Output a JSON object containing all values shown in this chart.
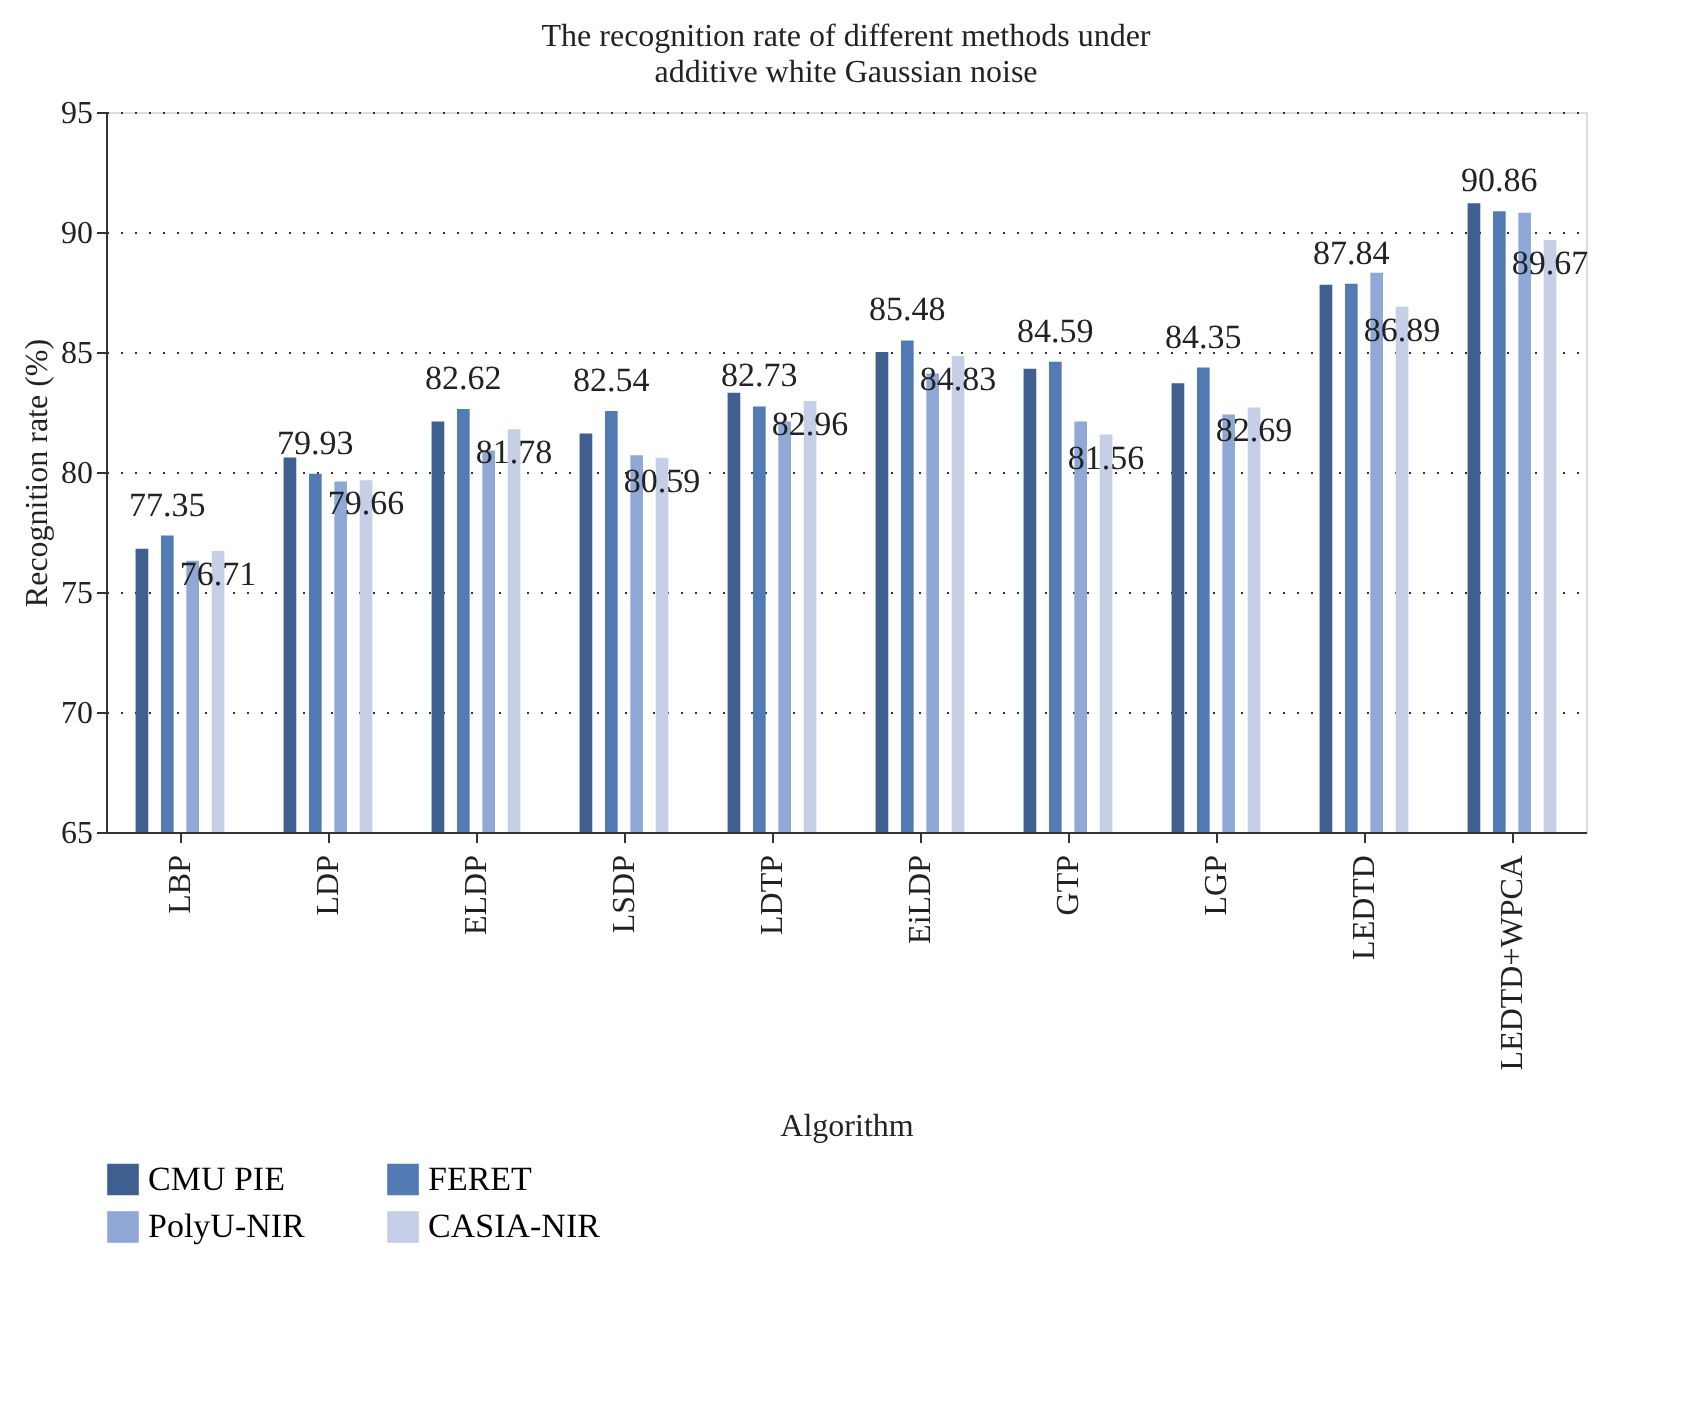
{
  "chart_data": {
    "type": "bar",
    "title": [
      "The recognition rate of different methods under",
      "additive white Gaussian noise"
    ],
    "xlabel": "Algorithm",
    "ylabel": "Recognition rate (%)",
    "categories": [
      "LBP",
      "LDP",
      "ELDP",
      "LSDP",
      "LDTP",
      "EiLDP",
      "GTP",
      "LGP",
      "LEDTD",
      "LEDTD+WPCA"
    ],
    "series": [
      {
        "name": "CMU PIE",
        "color": "#3f5f91",
        "values": [
          76.8,
          80.6,
          82.1,
          81.6,
          83.3,
          85.0,
          84.3,
          83.7,
          87.8,
          91.2
        ]
      },
      {
        "name": "FERET",
        "color": "#527bb3",
        "values": [
          77.35,
          79.93,
          82.62,
          82.54,
          82.73,
          85.48,
          84.59,
          84.35,
          87.84,
          90.86
        ],
        "value_labels": [
          "77.35",
          "79.93",
          "82.62",
          "82.54",
          "82.73",
          "85.48",
          "84.59",
          "84.35",
          "87.84",
          "90.86"
        ]
      },
      {
        "name": "PolyU-NIR",
        "color": "#8fa8d6",
        "values": [
          76.3,
          79.6,
          80.9,
          80.7,
          82.1,
          84.1,
          82.1,
          82.4,
          88.3,
          90.8
        ]
      },
      {
        "name": "CASIA-NIR",
        "color": "#c6cfe8",
        "values": [
          76.71,
          79.66,
          81.78,
          80.59,
          82.96,
          84.83,
          81.56,
          82.69,
          86.89,
          89.67
        ],
        "value_labels": [
          "76.71",
          "79.66",
          "81.78",
          "80.59",
          "82.96",
          "84.83",
          "81.56",
          "82.69",
          "86.89",
          "89.67"
        ]
      }
    ],
    "ylim": [
      65,
      95
    ],
    "yticks": [
      65,
      70,
      75,
      80,
      85,
      90,
      95
    ],
    "grid": "y",
    "legend": "bottom"
  }
}
